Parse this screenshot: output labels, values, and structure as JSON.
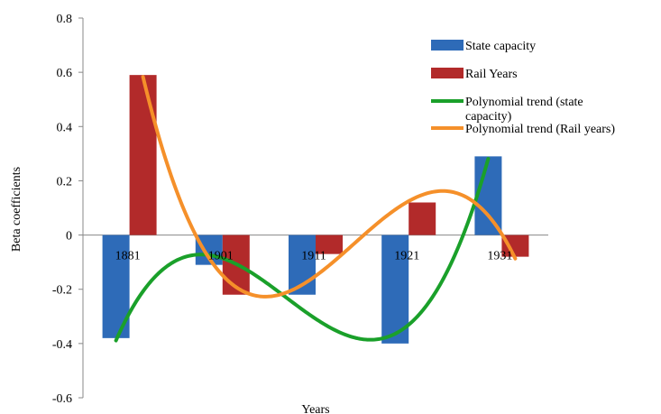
{
  "chart_data": {
    "type": "bar",
    "title": "",
    "xlabel": "Years",
    "ylabel": "Beta coefficients",
    "ylim": [
      -0.6,
      0.8
    ],
    "yticks": [
      "0.8",
      "0.6",
      "0.4",
      "0.2",
      "0",
      "-0.2",
      "-0.4",
      "-0.6"
    ],
    "categories": [
      "1881",
      "1901",
      "1911",
      "1921",
      "1931"
    ],
    "grid": false,
    "legend_position": "top-right",
    "series": [
      {
        "name": "State capacity",
        "color": "#2e6bb8",
        "values": [
          -0.38,
          -0.11,
          -0.22,
          -0.4,
          0.29
        ]
      },
      {
        "name": "Rail Years",
        "color": "#b22a2a",
        "values": [
          0.59,
          -0.22,
          -0.07,
          0.12,
          -0.08
        ]
      }
    ],
    "trendlines": [
      {
        "name": "Polynomial trend (state capacity)",
        "legend_lines": [
          "Polynomial trend (state",
          "capacity)"
        ],
        "color": "#1aa02a",
        "of_series": "State capacity"
      },
      {
        "name": "Polynomial trend (Rail years)",
        "legend_lines": [
          "Polynomial trend (Rail years)"
        ],
        "color": "#f5902a",
        "of_series": "Rail Years"
      }
    ]
  }
}
